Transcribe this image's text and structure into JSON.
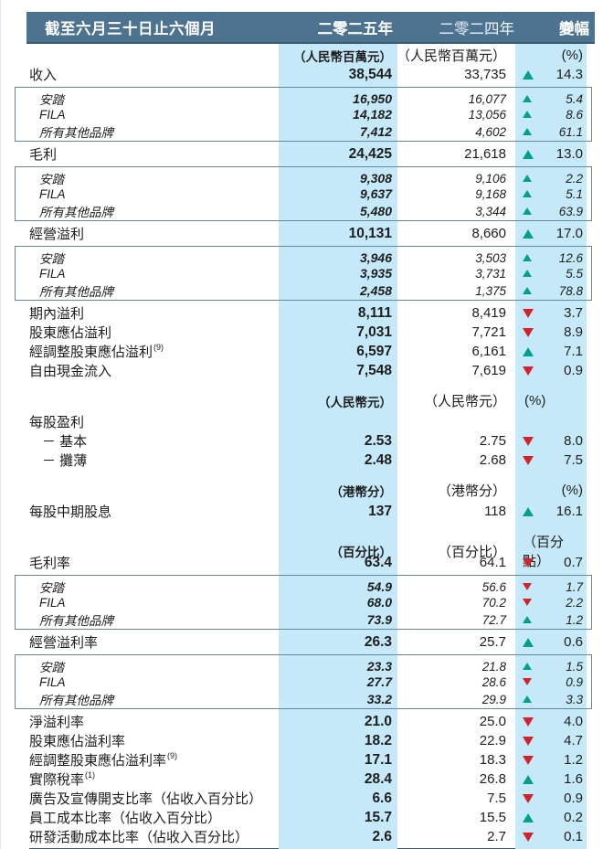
{
  "colors": {
    "banner_bg": "#4d7390",
    "banner_text": "#ffffff",
    "highlight_column": "#c6e9f9",
    "up_triangle": "#00a08c",
    "down_triangle": "#d2232a",
    "text": "#1d1d1d",
    "box_border": "#6b8595",
    "bottom_rule": "#335a72"
  },
  "header": {
    "period_label": "截至六月三十日止六個月",
    "col_2025": "二零二五年",
    "col_2024": "二零二四年",
    "col_change": "變幅"
  },
  "icons": {
    "up": "up-triangle-icon",
    "down": "down-triangle-icon"
  },
  "table": {
    "rows": [
      {
        "type": "units",
        "u2025": "（人民幣百萬元）",
        "u2024": "（人民幣百萬元）",
        "uchg": "(%)",
        "chg_align": "right"
      },
      {
        "type": "main",
        "label": "收入",
        "v2025": "38,544",
        "v2024": "33,735",
        "dir": "up",
        "chg": "14.3"
      },
      {
        "type": "box",
        "items": [
          {
            "label": "安踏",
            "v2025": "16,950",
            "v2024": "16,077",
            "dir": "up",
            "chg": "5.4"
          },
          {
            "label": "FILA",
            "v2025": "14,182",
            "v2024": "13,056",
            "dir": "up",
            "chg": "8.6"
          },
          {
            "label": "所有其他品牌",
            "v2025": "7,412",
            "v2024": "4,602",
            "dir": "up",
            "chg": "61.1"
          }
        ]
      },
      {
        "type": "main",
        "label": "毛利",
        "v2025": "24,425",
        "v2024": "21,618",
        "dir": "up",
        "chg": "13.0"
      },
      {
        "type": "box",
        "items": [
          {
            "label": "安踏",
            "v2025": "9,308",
            "v2024": "9,106",
            "dir": "up",
            "chg": "2.2"
          },
          {
            "label": "FILA",
            "v2025": "9,637",
            "v2024": "9,168",
            "dir": "up",
            "chg": "5.1"
          },
          {
            "label": "所有其他品牌",
            "v2025": "5,480",
            "v2024": "3,344",
            "dir": "up",
            "chg": "63.9"
          }
        ]
      },
      {
        "type": "main",
        "label": "經營溢利",
        "v2025": "10,131",
        "v2024": "8,660",
        "dir": "up",
        "chg": "17.0"
      },
      {
        "type": "box",
        "items": [
          {
            "label": "安踏",
            "v2025": "3,946",
            "v2024": "3,503",
            "dir": "up",
            "chg": "12.6"
          },
          {
            "label": "FILA",
            "v2025": "3,935",
            "v2024": "3,731",
            "dir": "up",
            "chg": "5.5"
          },
          {
            "label": "所有其他品牌",
            "v2025": "2,458",
            "v2024": "1,375",
            "dir": "up",
            "chg": "78.8"
          }
        ]
      },
      {
        "type": "main",
        "label": "期內溢利",
        "v2025": "8,111",
        "v2024": "8,419",
        "dir": "down",
        "chg": "3.7"
      },
      {
        "type": "main",
        "label": "股東應佔溢利",
        "v2025": "7,031",
        "v2024": "7,721",
        "dir": "down",
        "chg": "8.9"
      },
      {
        "type": "main",
        "label": "經調整股東應佔溢利",
        "note": "(9)",
        "v2025": "6,597",
        "v2024": "6,161",
        "dir": "up",
        "chg": "7.1"
      },
      {
        "type": "main",
        "label": "自由現金流入",
        "v2025": "7,548",
        "v2024": "7,619",
        "dir": "down",
        "chg": "0.9"
      },
      {
        "type": "units",
        "u2025": "（人民幣元）",
        "u2024": "（人民幣元）",
        "uchg": "(%)",
        "chg_align": "left",
        "gap_before": true
      },
      {
        "type": "label",
        "label": "每股盈利"
      },
      {
        "type": "main",
        "label": "－ 基本",
        "indent": true,
        "v2025": "2.53",
        "v2024": "2.75",
        "dir": "down",
        "chg": "8.0"
      },
      {
        "type": "main",
        "label": "－ 攤薄",
        "indent": true,
        "v2025": "2.48",
        "v2024": "2.68",
        "dir": "down",
        "chg": "7.5"
      },
      {
        "type": "units",
        "u2025": "（港幣分）",
        "u2024": "（港幣分）",
        "uchg": "(%)",
        "chg_align": "right",
        "gap_before": true
      },
      {
        "type": "main",
        "label": "每股中期股息",
        "v2025": "137",
        "v2024": "118",
        "dir": "up",
        "chg": "16.1"
      },
      {
        "type": "units",
        "u2025": "（百分比）",
        "u2024": "（百分比）",
        "uchg": "（百分點）",
        "chg_align": "right",
        "gap_before": true
      },
      {
        "type": "main",
        "label": "毛利率",
        "v2025": "63.4",
        "v2024": "64.1",
        "dir": "down",
        "chg": "0.7"
      },
      {
        "type": "box",
        "items": [
          {
            "label": "安踏",
            "v2025": "54.9",
            "v2024": "56.6",
            "dir": "down",
            "chg": "1.7"
          },
          {
            "label": "FILA",
            "v2025": "68.0",
            "v2024": "70.2",
            "dir": "down",
            "chg": "2.2"
          },
          {
            "label": "所有其他品牌",
            "v2025": "73.9",
            "v2024": "72.7",
            "dir": "up",
            "chg": "1.2"
          }
        ]
      },
      {
        "type": "main",
        "label": "經營溢利率",
        "v2025": "26.3",
        "v2024": "25.7",
        "dir": "up",
        "chg": "0.6"
      },
      {
        "type": "box",
        "items": [
          {
            "label": "安踏",
            "v2025": "23.3",
            "v2024": "21.8",
            "dir": "up",
            "chg": "1.5"
          },
          {
            "label": "FILA",
            "v2025": "27.7",
            "v2024": "28.6",
            "dir": "down",
            "chg": "0.9"
          },
          {
            "label": "所有其他品牌",
            "v2025": "33.2",
            "v2024": "29.9",
            "dir": "up",
            "chg": "3.3"
          }
        ]
      },
      {
        "type": "main",
        "label": "淨溢利率",
        "v2025": "21.0",
        "v2024": "25.0",
        "dir": "down",
        "chg": "4.0"
      },
      {
        "type": "main",
        "label": "股東應佔溢利率",
        "v2025": "18.2",
        "v2024": "22.9",
        "dir": "down",
        "chg": "4.7"
      },
      {
        "type": "main",
        "label": "經調整股東應佔溢利率",
        "note": "(9)",
        "v2025": "17.1",
        "v2024": "18.3",
        "dir": "down",
        "chg": "1.2"
      },
      {
        "type": "main",
        "label": "實際稅率",
        "note": "(1)",
        "v2025": "28.4",
        "v2024": "26.8",
        "dir": "up",
        "chg": "1.6"
      },
      {
        "type": "main",
        "label": "廣告及宣傳開支比率（佔收入百分比）",
        "v2025": "6.6",
        "v2024": "7.5",
        "dir": "down",
        "chg": "0.9"
      },
      {
        "type": "main",
        "label": "員工成本比率（佔收入百分比）",
        "v2025": "15.7",
        "v2024": "15.5",
        "dir": "up",
        "chg": "0.2"
      },
      {
        "type": "main",
        "label": "研發活動成本比率（佔收入百分比）",
        "v2025": "2.6",
        "v2024": "2.7",
        "dir": "down",
        "chg": "0.1"
      }
    ]
  }
}
